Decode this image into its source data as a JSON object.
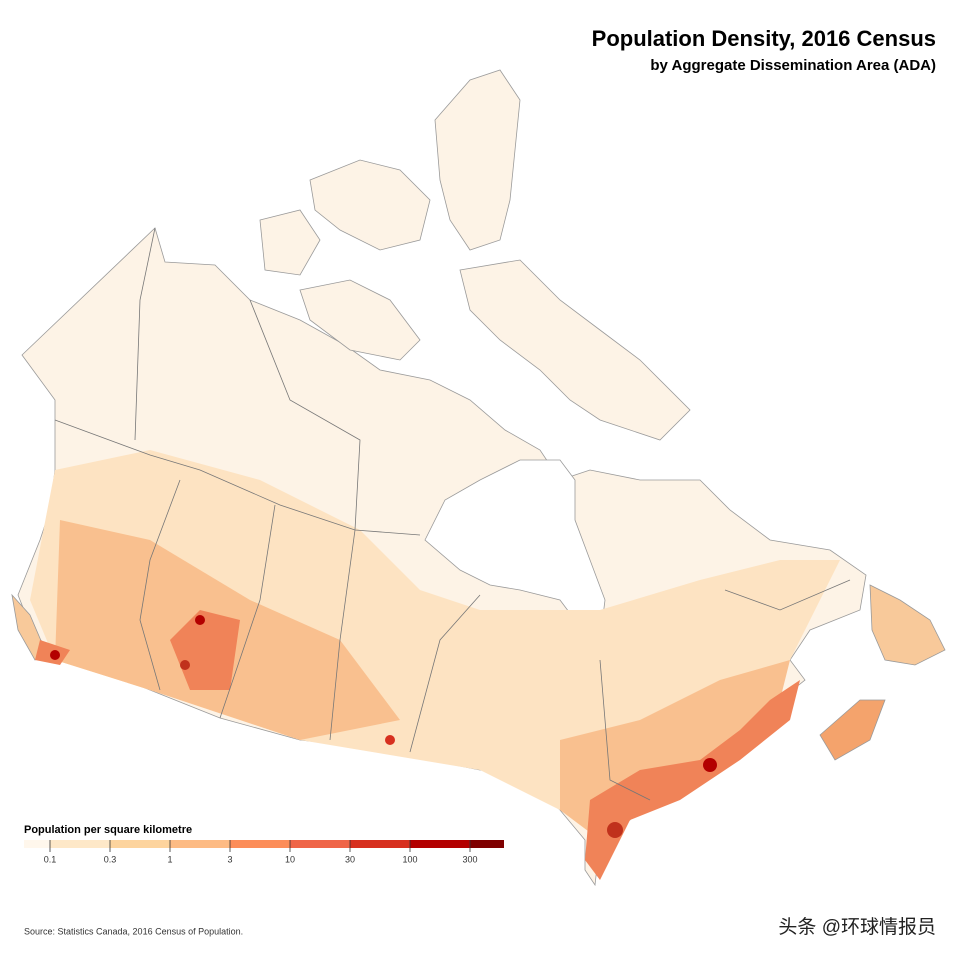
{
  "header": {
    "title": "Population Density, 2016 Census",
    "subtitle": "by Aggregate Dissemination Area (ADA)"
  },
  "legend": {
    "title": "Population per square kilometre",
    "ticks": [
      0.1,
      0.3,
      1,
      3,
      10,
      30,
      100,
      300
    ],
    "colors": [
      "#fff7ec",
      "#fee8c8",
      "#fdd49e",
      "#fdbb84",
      "#fc8d59",
      "#ef6548",
      "#d7301f",
      "#b30000",
      "#7f0000"
    ]
  },
  "footer": {
    "source": "Source: Statistics Canada, 2016 Census of Population.",
    "watermark": "头条 @环球情报员"
  }
}
